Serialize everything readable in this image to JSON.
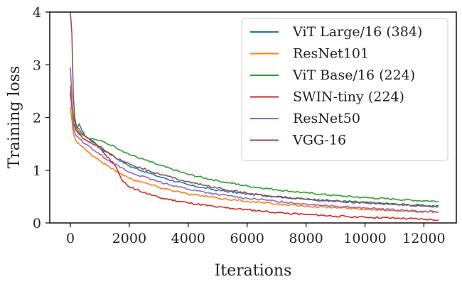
{
  "chart_data": {
    "type": "line",
    "xlabel": "Iterations",
    "ylabel": "Training loss",
    "xlim": [
      -700,
      13100
    ],
    "ylim": [
      0,
      4
    ],
    "xticks": [
      0,
      2000,
      4000,
      6000,
      8000,
      10000,
      12000
    ],
    "yticks": [
      0,
      1,
      2,
      3,
      4
    ],
    "grid": false,
    "legend_position": "top-right",
    "series": [
      {
        "name": "ViT Large/16 (384)",
        "color": "#1f77b4",
        "x": [
          0,
          100,
          200,
          300,
          400,
          500,
          700,
          1000,
          1500,
          2000,
          3000,
          4000,
          5000,
          6000,
          7000,
          8000,
          9000,
          10000,
          11000,
          12000,
          12500
        ],
        "y": [
          2.45,
          2.0,
          1.8,
          1.88,
          1.75,
          1.65,
          1.58,
          1.45,
          1.25,
          1.08,
          0.88,
          0.72,
          0.62,
          0.55,
          0.5,
          0.45,
          0.42,
          0.39,
          0.36,
          0.33,
          0.32
        ]
      },
      {
        "name": "ResNet101",
        "color": "#ff7f0e",
        "x": [
          0,
          100,
          200,
          300,
          400,
          500,
          700,
          1000,
          1500,
          2000,
          3000,
          4000,
          5000,
          6000,
          7000,
          8000,
          9000,
          10000,
          11000,
          12000,
          12500
        ],
        "y": [
          2.2,
          1.7,
          1.55,
          1.5,
          1.45,
          1.4,
          1.3,
          1.18,
          1.0,
          0.85,
          0.68,
          0.55,
          0.47,
          0.41,
          0.36,
          0.32,
          0.29,
          0.26,
          0.24,
          0.21,
          0.2
        ]
      },
      {
        "name": "ViT Base/16 (224)",
        "color": "#2ca02c",
        "x": [
          0,
          100,
          200,
          300,
          400,
          500,
          700,
          1000,
          1500,
          2000,
          3000,
          4000,
          5000,
          6000,
          7000,
          8000,
          9000,
          10000,
          11000,
          12000,
          12500
        ],
        "y": [
          2.6,
          2.05,
          1.8,
          1.72,
          1.68,
          1.64,
          1.6,
          1.56,
          1.45,
          1.3,
          1.1,
          0.92,
          0.8,
          0.7,
          0.63,
          0.57,
          0.52,
          0.48,
          0.45,
          0.42,
          0.41
        ]
      },
      {
        "name": "SWIN-tiny (224)",
        "color": "#d62728",
        "x": [
          0,
          100,
          200,
          300,
          400,
          500,
          700,
          1000,
          1500,
          1800,
          2000,
          3000,
          4000,
          5000,
          6000,
          7000,
          8000,
          9000,
          10000,
          11000,
          12000,
          12500
        ],
        "y": [
          2.5,
          1.9,
          1.75,
          1.68,
          1.62,
          1.58,
          1.52,
          1.42,
          1.1,
          0.78,
          0.68,
          0.48,
          0.38,
          0.3,
          0.25,
          0.2,
          0.16,
          0.13,
          0.11,
          0.09,
          0.07,
          0.06
        ]
      },
      {
        "name": "ResNet50",
        "color": "#9467bd",
        "x": [
          0,
          100,
          200,
          300,
          400,
          500,
          700,
          1000,
          1500,
          2000,
          3000,
          4000,
          5000,
          6000,
          7000,
          8000,
          9000,
          10000,
          11000,
          12000,
          12500
        ],
        "y": [
          2.95,
          1.8,
          1.65,
          1.6,
          1.55,
          1.5,
          1.43,
          1.3,
          1.12,
          0.96,
          0.78,
          0.64,
          0.54,
          0.47,
          0.41,
          0.36,
          0.32,
          0.28,
          0.25,
          0.22,
          0.21
        ]
      },
      {
        "name": "VGG-16",
        "color": "#8c564b",
        "x": [
          0,
          50,
          100,
          150,
          200,
          300,
          400,
          500,
          700,
          1000,
          1500,
          2000,
          3000,
          4000,
          5000,
          6000,
          7000,
          8000,
          9000,
          10000,
          11000,
          12000,
          12500
        ],
        "y": [
          4.0,
          3.6,
          2.4,
          2.0,
          1.85,
          1.78,
          1.7,
          1.65,
          1.55,
          1.42,
          1.25,
          1.12,
          0.93,
          0.78,
          0.66,
          0.56,
          0.5,
          0.45,
          0.41,
          0.38,
          0.35,
          0.32,
          0.31
        ]
      }
    ]
  }
}
